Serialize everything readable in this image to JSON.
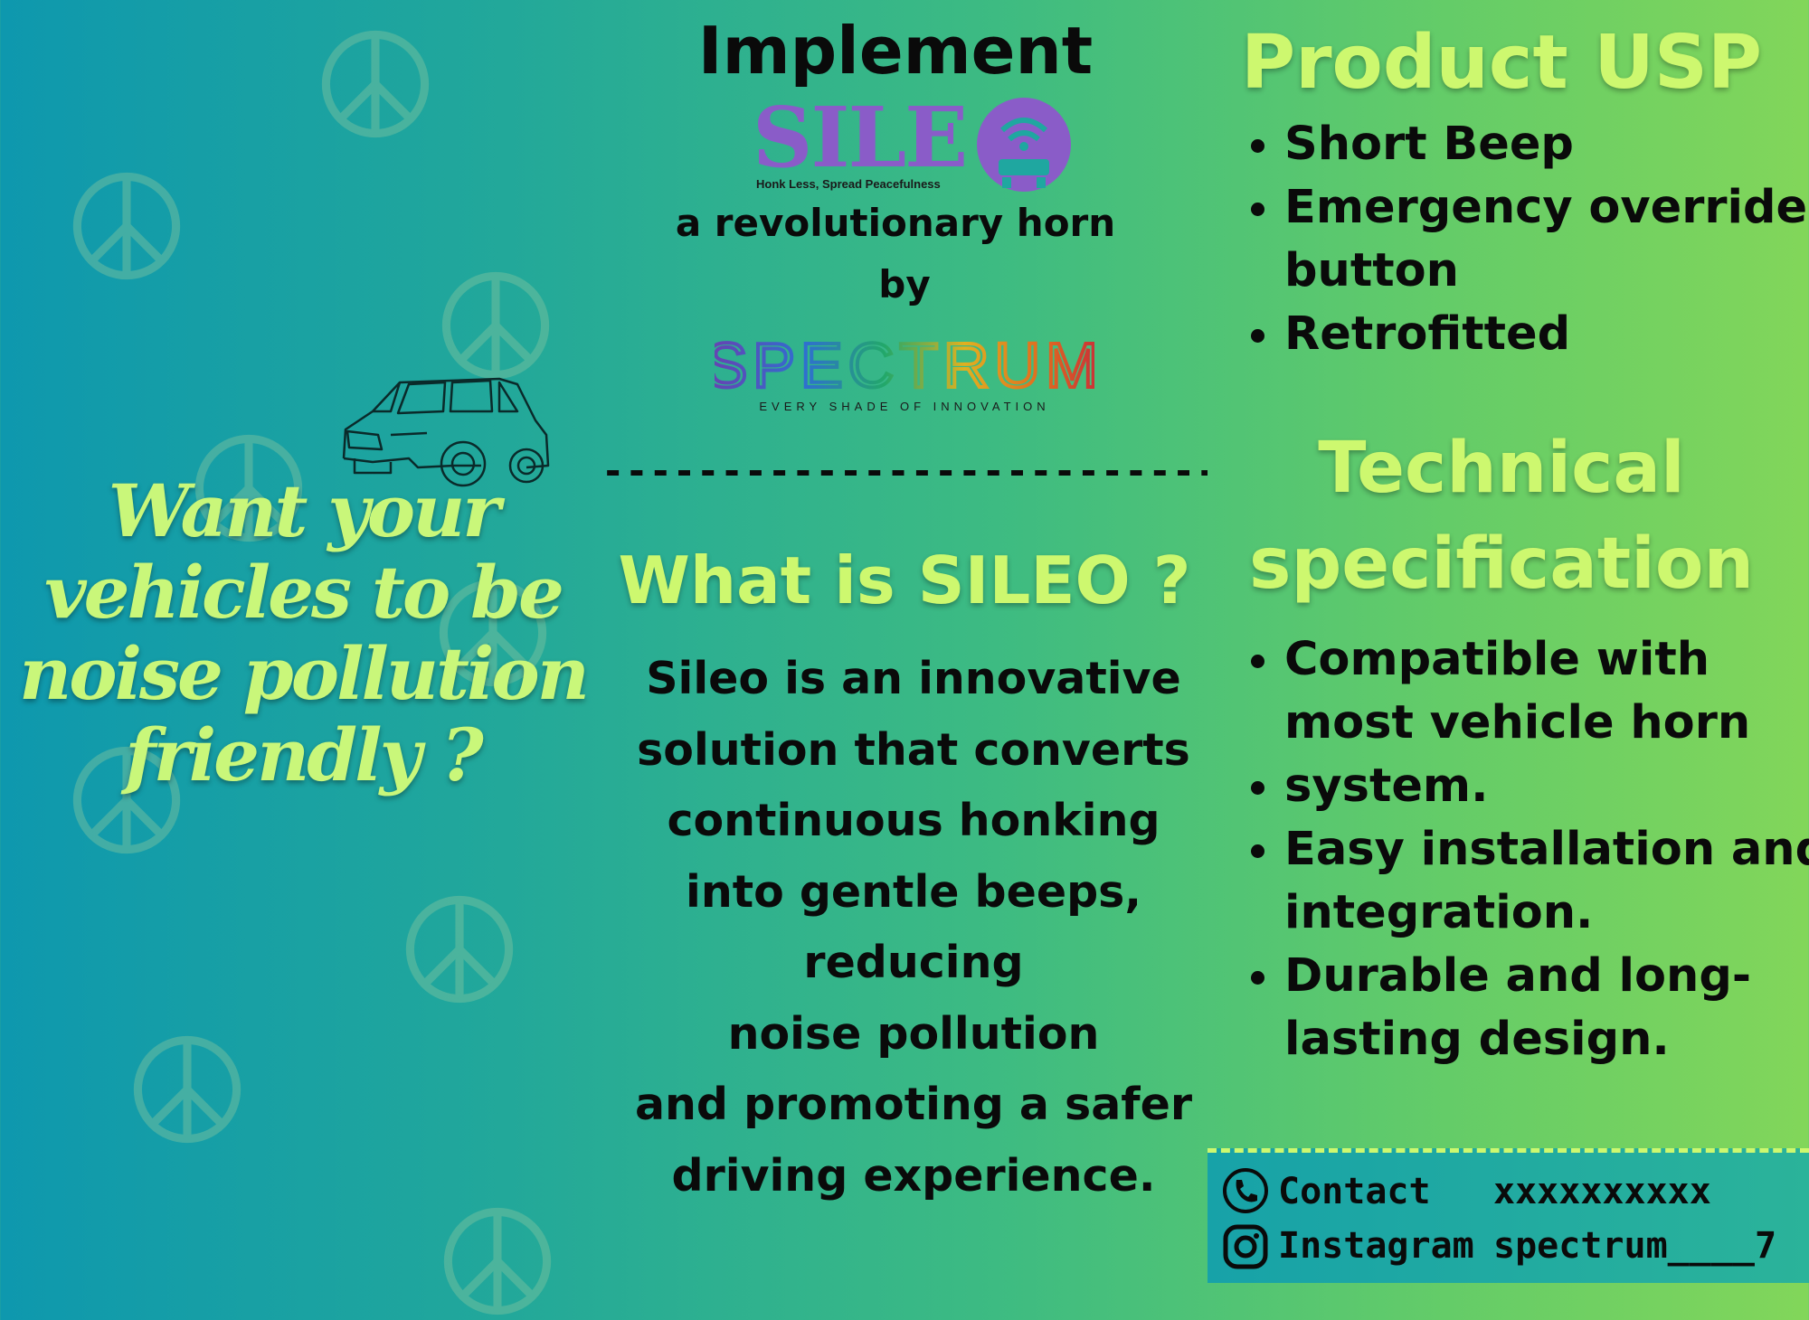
{
  "hero_text": "Want your vehicles to be noise pollution friendly ?",
  "center": {
    "implement": "Implement",
    "sileo_logo_text": "SILE",
    "sileo_tagline": "Honk Less, Spread Peacefulness",
    "tagline": "a revolutionary horn",
    "by": "by",
    "spectrum_logo_text": "SPECTRUM",
    "spectrum_tagline": "EVERY SHADE OF INNOVATION",
    "divider": "--------------------------",
    "what_heading": "What is SILEO ?",
    "description": [
      "Sileo is an innovative",
      "solution that converts",
      "continuous honking",
      "into gentle beeps,",
      "reducing",
      "noise pollution",
      "and promoting a safer",
      "driving experience."
    ]
  },
  "usp": {
    "heading": "Product USP",
    "items": [
      "Short Beep",
      "Emergency override button",
      "Retrofitted"
    ]
  },
  "tech": {
    "heading_line1": "Technical",
    "heading_line2": "specification",
    "items": [
      "Compatible with most vehicle horn",
      "system.",
      "Easy installation and integration.",
      "Durable and long-lasting design."
    ]
  },
  "contact": {
    "contact_label": "Contact",
    "contact_value": "xxxxxxxxxx",
    "instagram_label": "Instagram",
    "instagram_value": "spectrum____7"
  },
  "colors": {
    "accent_green": "#cdf86f",
    "sileo_purple": "#8a5cc8"
  },
  "icons": [
    "peace-icon",
    "car-icon",
    "phone-icon",
    "instagram-icon",
    "wifi-car-icon"
  ]
}
